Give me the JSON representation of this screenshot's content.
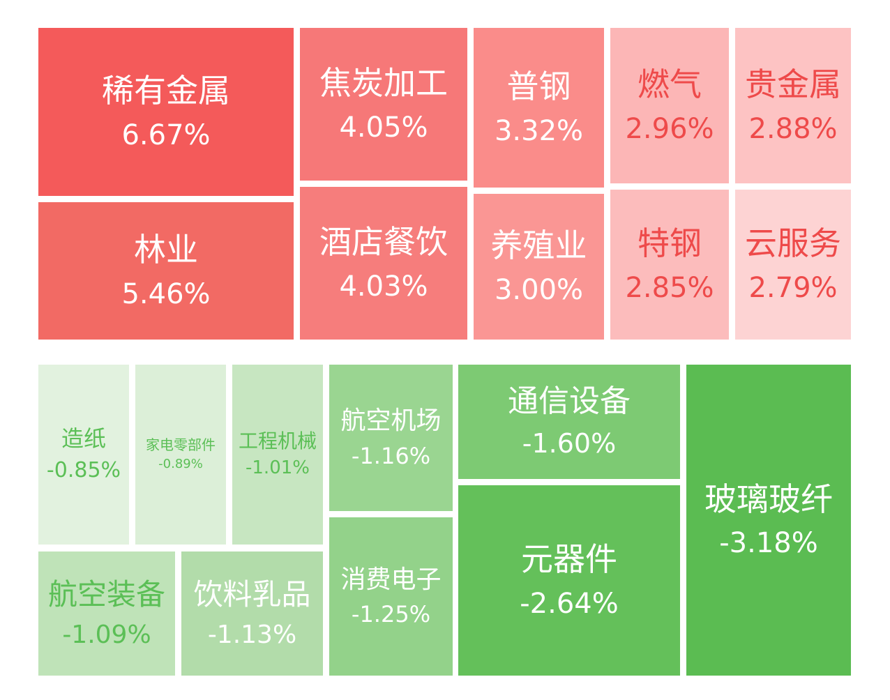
{
  "chart_data": [
    {
      "type": "treemap",
      "unit": "%",
      "items": [
        {
          "name": "稀有金属",
          "value": 6.67,
          "label": "6.67%",
          "color": "#f45a5a",
          "text": "#ffffff"
        },
        {
          "name": "林业",
          "value": 5.46,
          "label": "5.46%",
          "color": "#f26a64",
          "text": "#ffffff"
        },
        {
          "name": "焦炭加工",
          "value": 4.05,
          "label": "4.05%",
          "color": "#f67878",
          "text": "#ffffff"
        },
        {
          "name": "酒店餐饮",
          "value": 4.03,
          "label": "4.03%",
          "color": "#f67d7c",
          "text": "#ffffff"
        },
        {
          "name": "普钢",
          "value": 3.32,
          "label": "3.32%",
          "color": "#fa8c8a",
          "text": "#ffffff"
        },
        {
          "name": "养殖业",
          "value": 3.0,
          "label": "3.00%",
          "color": "#fa9694",
          "text": "#ffffff"
        },
        {
          "name": "燃气",
          "value": 2.96,
          "label": "2.96%",
          "color": "#fcb6b6",
          "text": "#ee4a4a"
        },
        {
          "name": "特钢",
          "value": 2.85,
          "label": "2.85%",
          "color": "#fcbcbc",
          "text": "#ee4a4a"
        },
        {
          "name": "贵金属",
          "value": 2.88,
          "label": "2.88%",
          "color": "#fdc3c3",
          "text": "#ee4a4a"
        },
        {
          "name": "云服务",
          "value": 2.79,
          "label": "2.79%",
          "color": "#fdd3d3",
          "text": "#ee4a4a"
        }
      ]
    },
    {
      "type": "treemap",
      "unit": "%",
      "items": [
        {
          "name": "造纸",
          "value": -0.85,
          "label": "-0.85%",
          "color": "#e2f2df",
          "text": "#5bbf56"
        },
        {
          "name": "家电零部件",
          "value": -0.89,
          "label": "-0.89%",
          "color": "#dcefd8",
          "text": "#5bbf56"
        },
        {
          "name": "工程机械",
          "value": -1.01,
          "label": "-1.01%",
          "color": "#c7e6c1",
          "text": "#5bbf56"
        },
        {
          "name": "航空装备",
          "value": -1.09,
          "label": "-1.09%",
          "color": "#bfe3b8",
          "text": "#5bbf56"
        },
        {
          "name": "饮料乳品",
          "value": -1.13,
          "label": "-1.13%",
          "color": "#b2dcaa",
          "text": "#ffffff"
        },
        {
          "name": "航空机场",
          "value": -1.16,
          "label": "-1.16%",
          "color": "#9ad591",
          "text": "#ffffff"
        },
        {
          "name": "消费电子",
          "value": -1.25,
          "label": "-1.25%",
          "color": "#93d28a",
          "text": "#ffffff"
        },
        {
          "name": "通信设备",
          "value": -1.6,
          "label": "-1.60%",
          "color": "#7dca73",
          "text": "#ffffff"
        },
        {
          "name": "元器件",
          "value": -2.64,
          "label": "-2.64%",
          "color": "#64c05a",
          "text": "#ffffff"
        },
        {
          "name": "玻璃玻纤",
          "value": -3.18,
          "label": "-3.18%",
          "color": "#5bbc52",
          "text": "#ffffff"
        }
      ]
    }
  ]
}
